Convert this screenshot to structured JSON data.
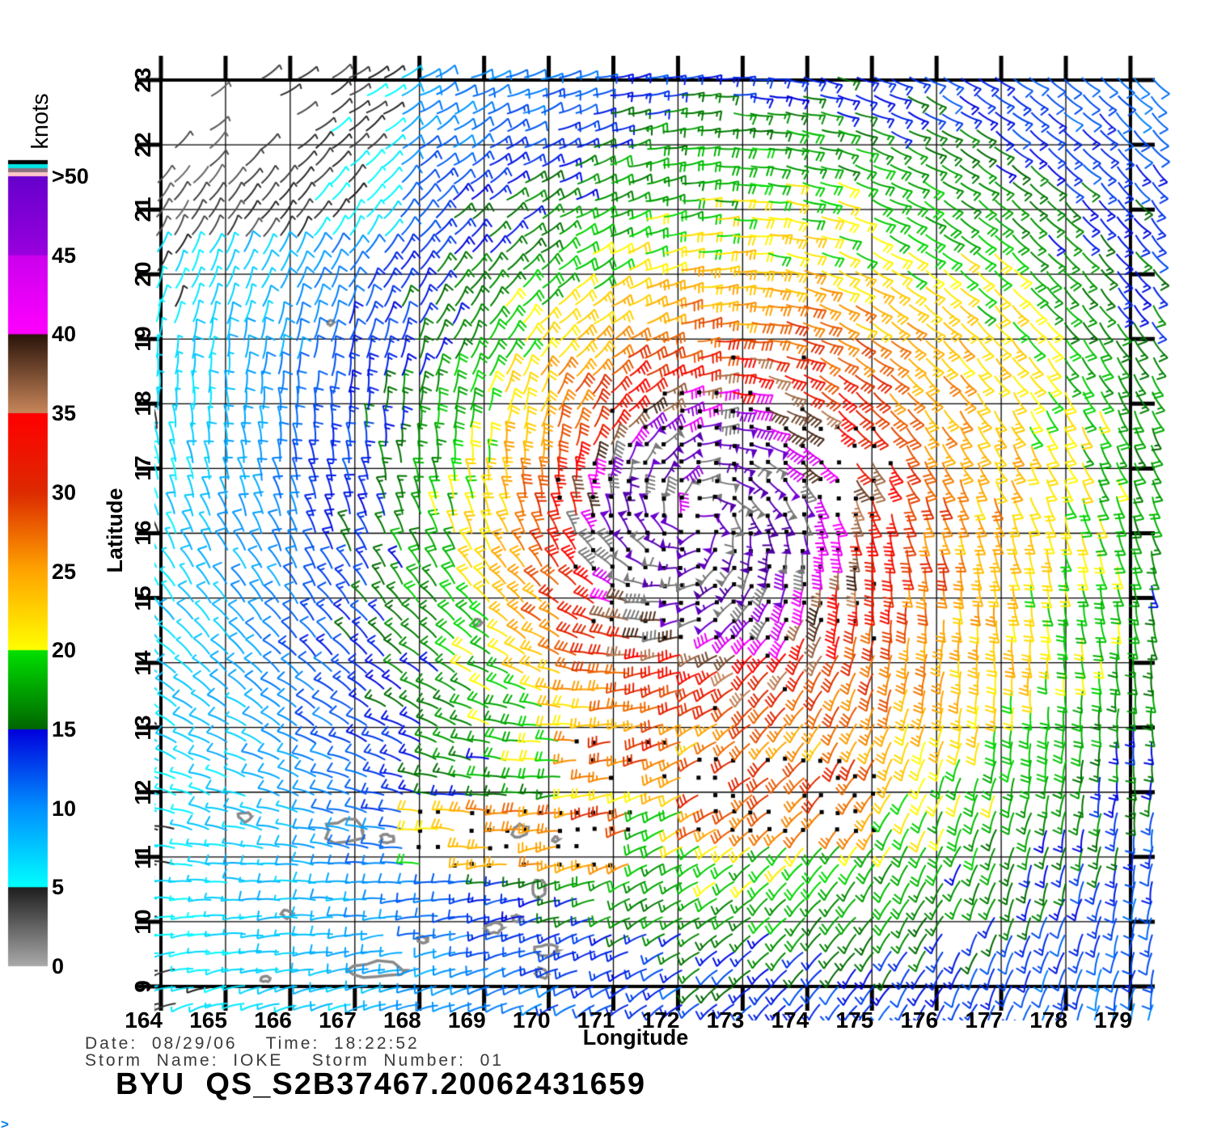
{
  "chart_data": {
    "type": "wind_barb_field",
    "title": "BYU  QS_S2B37467.20062431659",
    "xlabel": "Longitude",
    "ylabel": "Latitude",
    "xlim": [
      164,
      179
    ],
    "ylim": [
      9,
      23
    ],
    "grid": true,
    "x_ticks": [
      164,
      165,
      166,
      167,
      168,
      169,
      170,
      171,
      172,
      173,
      174,
      175,
      176,
      177,
      178,
      179
    ],
    "y_ticks": [
      9,
      10,
      11,
      12,
      13,
      14,
      15,
      16,
      17,
      18,
      19,
      20,
      21,
      22,
      23
    ],
    "colorbar": {
      "title": "knots",
      "tick_labels": [
        "0",
        "5",
        "10",
        "15",
        "20",
        "25",
        "30",
        "35",
        "40",
        "45",
        ">50"
      ],
      "tick_values": [
        0,
        5,
        10,
        15,
        20,
        25,
        30,
        35,
        40,
        45,
        50
      ],
      "segments": [
        {
          "v0": 0,
          "v1": 5,
          "c0": "#aaaaaa",
          "c1": "#1e1e1e"
        },
        {
          "v0": 5,
          "v1": 10,
          "c0": "#00ffff",
          "c1": "#0090ff"
        },
        {
          "v0": 10,
          "v1": 15,
          "c0": "#0090ff",
          "c1": "#0000dd"
        },
        {
          "v0": 15,
          "v1": 20,
          "c0": "#006600",
          "c1": "#00e000"
        },
        {
          "v0": 20,
          "v1": 25,
          "c0": "#ffff00",
          "c1": "#ffa500"
        },
        {
          "v0": 25,
          "v1": 30,
          "c0": "#ffa500",
          "c1": "#dd2a00"
        },
        {
          "v0": 30,
          "v1": 35,
          "c0": "#dd2a00",
          "c1": "#ff0000"
        },
        {
          "v0": 35,
          "v1": 40,
          "c0": "#c8865a",
          "c1": "#2a140a"
        },
        {
          "v0": 40,
          "v1": 45,
          "c0": "#ff00ff",
          "c1": "#cc00ee"
        },
        {
          "v0": 45,
          "v1": 50,
          "c0": "#9900dd",
          "c1": "#6600cc"
        }
      ],
      "over_color": "#4c0099",
      "rain_gray": "#787878",
      "flag_stripes": [
        "#000000",
        "#00e5e5",
        "#8a7080",
        "#ffc8c8"
      ]
    },
    "barb_convention": {
      "units": "knots",
      "half_barb_kt": 5,
      "full_barb_kt": 10,
      "pennant_kt": 50
    },
    "storm": {
      "name": "IOKE",
      "center_lon": 172.3,
      "center_lat": 16.2,
      "vmax_kt": 57,
      "r_max_deg": 1.15,
      "outer_exponent": 0.8,
      "far_radius_deg": 6,
      "far_exponent": 1.6,
      "inflow_deg": 20,
      "eye_floor": 0.82,
      "ambient_kt": 4,
      "ambient_toward_deg": 345
    },
    "grid_step_deg": 0.27,
    "rain_regions": [
      {
        "lon": [
          167.8,
          171.3
        ],
        "lat": [
          10.7,
          11.9
        ],
        "density": 0.8,
        "boost_kt": 9
      },
      {
        "lon": [
          172.2,
          175.2
        ],
        "lat": [
          11.2,
          12.5
        ],
        "density": 0.55,
        "boost_kt": 6
      },
      {
        "lon": [
          174.2,
          175.5
        ],
        "lat": [
          16.3,
          17.8
        ],
        "density": 0.45,
        "boost_kt": 0
      },
      {
        "lon": [
          170.4,
          172.0
        ],
        "lat": [
          12.0,
          12.9
        ],
        "density": 0.35,
        "boost_kt": 5
      }
    ],
    "sparse_regions": [
      {
        "lon": [
          163.9,
          166.4
        ],
        "lat": [
          21.5,
          23.3
        ],
        "drop": 0.5
      },
      {
        "lon": [
          163.9,
          165.5
        ],
        "lat": [
          22.2,
          23.3
        ],
        "drop": 0.85
      }
    ],
    "calm_region": {
      "lon": [
        163.9,
        167.5
      ],
      "lat": [
        20.5,
        23.3
      ],
      "factor": 0.55
    },
    "islands": [
      [
        166.62,
        19.25,
        0.05,
        0.04
      ],
      [
        168.9,
        14.62,
        0.07,
        0.05
      ],
      [
        165.3,
        11.62,
        0.1,
        0.07
      ],
      [
        166.85,
        11.4,
        0.28,
        0.18
      ],
      [
        167.5,
        11.28,
        0.1,
        0.07
      ],
      [
        165.95,
        10.12,
        0.08,
        0.06
      ],
      [
        169.55,
        11.4,
        0.13,
        0.1
      ],
      [
        170.1,
        11.27,
        0.05,
        0.04
      ],
      [
        169.85,
        10.5,
        0.09,
        0.13
      ],
      [
        169.5,
        10.05,
        0.06,
        0.05
      ],
      [
        169.15,
        9.9,
        0.13,
        0.09
      ],
      [
        169.95,
        9.55,
        0.17,
        0.1
      ],
      [
        169.9,
        9.2,
        0.09,
        0.08
      ],
      [
        167.35,
        9.25,
        0.4,
        0.12
      ],
      [
        168.05,
        9.72,
        0.08,
        0.05
      ],
      [
        165.62,
        9.12,
        0.07,
        0.05
      ]
    ],
    "annotations": {
      "date_line": "Date:  08/29/06    Time:  18:22:52",
      "storm_line": "Storm  Name:  IOKE    Storm  Number:  01"
    }
  },
  "decor": {
    "corner_mark": ">"
  }
}
